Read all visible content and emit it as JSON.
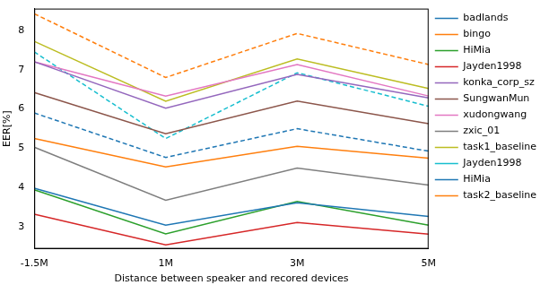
{
  "chart_data": {
    "type": "line",
    "x_label": "Distance between speaker and recored devices",
    "y_label": "EER[%]",
    "categories": [
      "-1.5M",
      "1M",
      "3M",
      "5M"
    ],
    "ylim": [
      2.45,
      8.55
    ],
    "yticks": [
      3,
      4,
      5,
      6,
      7,
      8
    ],
    "grid": false,
    "legend": "right",
    "series": [
      {
        "name": "badlands",
        "color": "#1f77b4",
        "line_style": "solid",
        "values": [
          3.99,
          3.05,
          3.62,
          3.27
        ]
      },
      {
        "name": "bingo",
        "color": "#ff7f0e",
        "line_style": "solid",
        "values": [
          5.25,
          4.53,
          5.05,
          4.75
        ]
      },
      {
        "name": "HiMia",
        "color": "#2ca02c",
        "line_style": "solid",
        "values": [
          3.95,
          2.83,
          3.65,
          3.05
        ]
      },
      {
        "name": "Jayden1998",
        "color": "#d62728",
        "line_style": "solid",
        "values": [
          3.33,
          2.55,
          3.12,
          2.82
        ]
      },
      {
        "name": "konka_corp_sz",
        "color": "#9467bd",
        "line_style": "solid",
        "values": [
          7.2,
          6.02,
          6.88,
          6.28
        ]
      },
      {
        "name": "SungwanMun",
        "color": "#8c564b",
        "line_style": "solid",
        "values": [
          6.42,
          5.37,
          6.2,
          5.63
        ]
      },
      {
        "name": "xudongwang",
        "color": "#e377c2",
        "line_style": "solid",
        "values": [
          7.2,
          6.33,
          7.13,
          6.33
        ]
      },
      {
        "name": "zxic_01",
        "color": "#7f7f7f",
        "line_style": "solid",
        "values": [
          5.03,
          3.68,
          4.5,
          4.07
        ]
      },
      {
        "name": "task1_baseline",
        "color": "#bcbd22",
        "line_style": "solid",
        "values": [
          7.72,
          6.2,
          7.27,
          6.52
        ]
      },
      {
        "name": "Jayden1998",
        "color": "#17becf",
        "line_style": "dashed",
        "values": [
          7.45,
          5.25,
          6.92,
          6.07
        ]
      },
      {
        "name": "HiMia",
        "color": "#1f77b4",
        "line_style": "dashed",
        "values": [
          5.9,
          4.77,
          5.5,
          4.93
        ]
      },
      {
        "name": "task2_baseline",
        "color": "#ff7f0e",
        "line_style": "dashed",
        "values": [
          8.42,
          6.8,
          7.92,
          7.13
        ]
      }
    ]
  }
}
